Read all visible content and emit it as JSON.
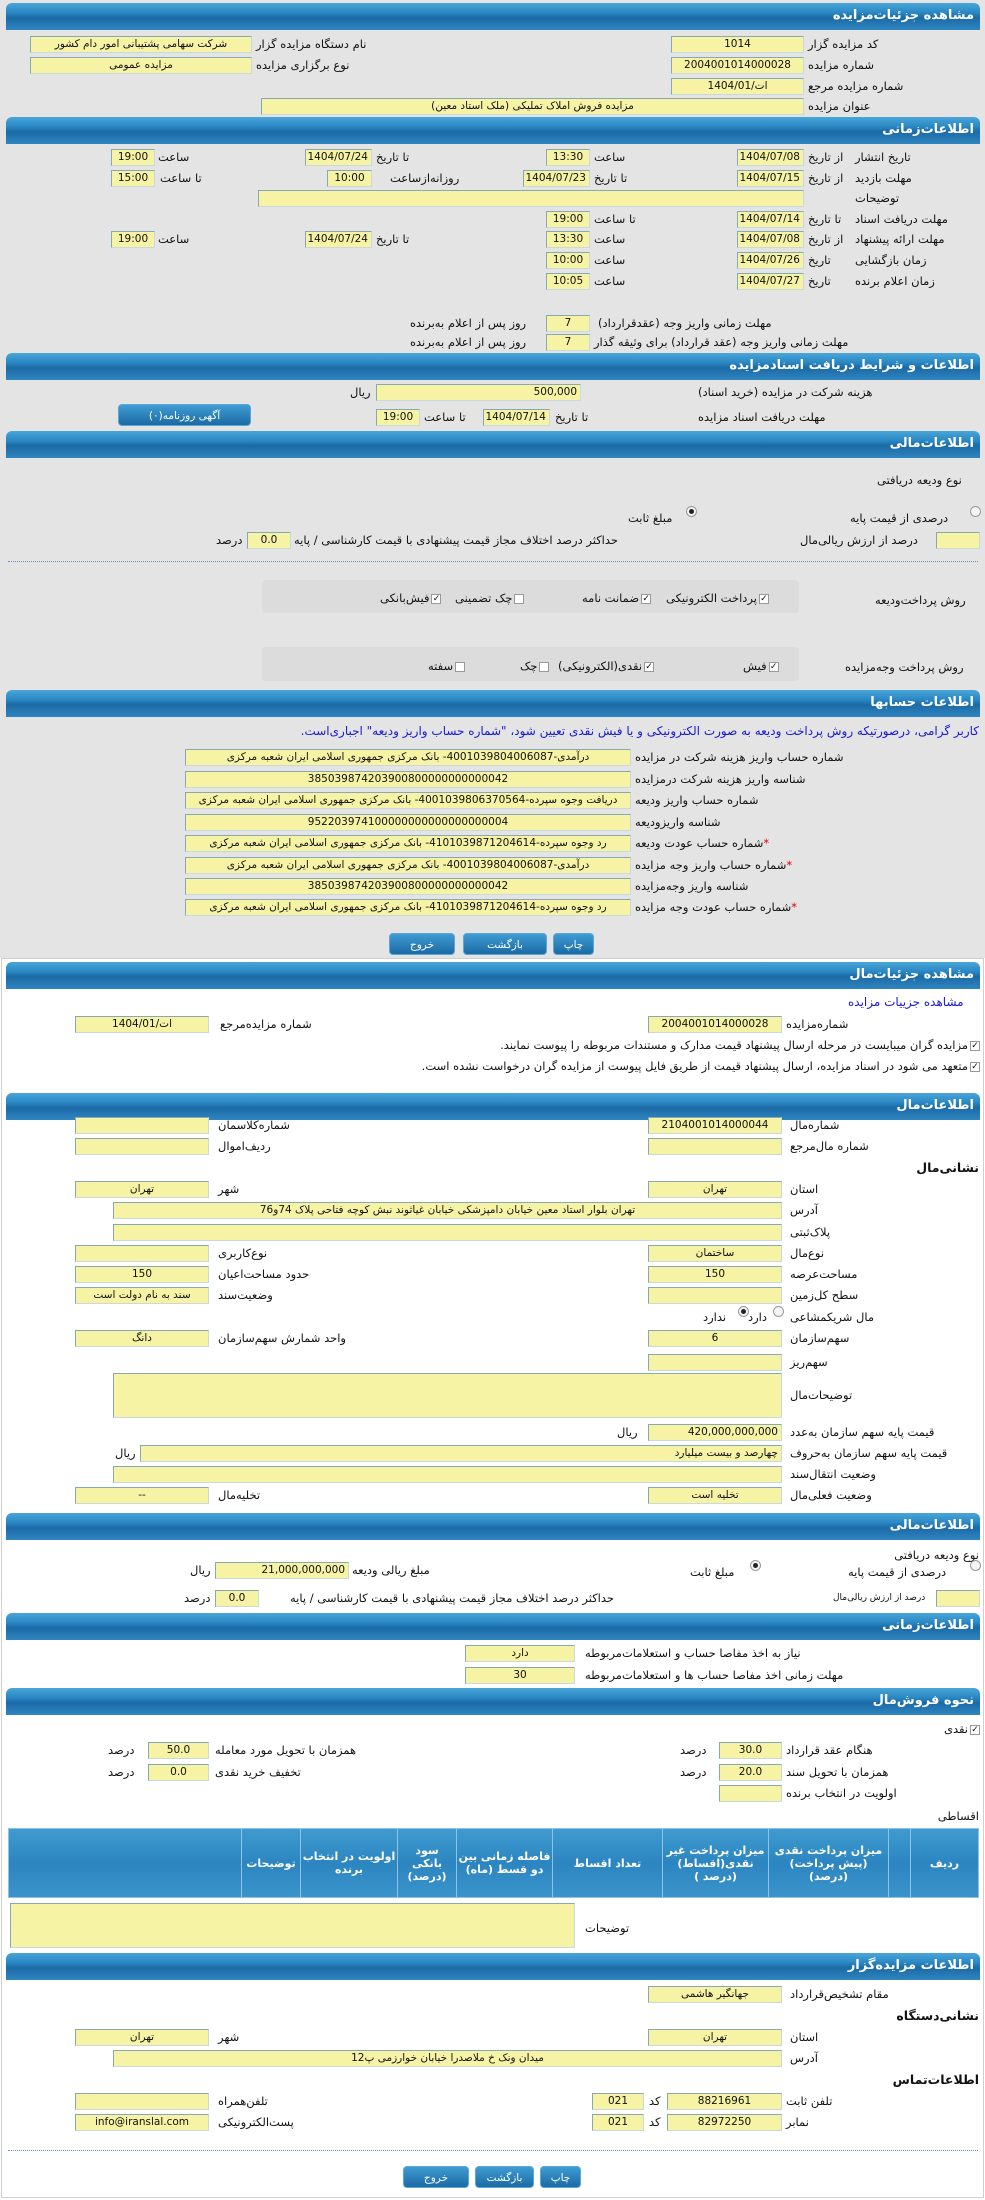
{
  "colors": {
    "header": "#2a88c4",
    "field": "#f6f3a4",
    "page": "#e4e4e4",
    "note": "#1a1ad0"
  },
  "s1": {
    "title": "مشاهده جزئیات‌مزایده",
    "code_label": "کد مزایده گزار",
    "code": "1014",
    "org_label": "نام دستگاه مزایده گزار",
    "org": "شرکت سهامی پشتیبانی امور دام کشور",
    "num_label": "شماره مزایده",
    "num": "2004001014000028",
    "type_label": "نوع برگزاری مزایده",
    "type": "مزایده عمومی",
    "ref_label": "شماره مزایده مرجع",
    "ref": "ات/1404/01",
    "subject_label": "عنوان مزایده",
    "subject": "مزایده فروش املاک تملیکی (ملک استاد معین)"
  },
  "s2": {
    "title": "اطلاعات‌زمانی",
    "from_date": "از تاریخ",
    "to_date": "تا تاریخ",
    "date": "تاریخ",
    "hour": "ساعت",
    "to_hour": "تا ساعت",
    "daily_from": "روزانه‌ازساعت",
    "publish_label": "تاریخ انتشار",
    "publish_from": "1404/07/08",
    "publish_from_time": "13:30",
    "publish_to": "1404/07/24",
    "publish_to_time": "19:00",
    "visit_label": "مهلت بازدید",
    "visit_from": "1404/07/15",
    "visit_to": "1404/07/23",
    "visit_daily_from": "10:00",
    "visit_to_time": "15:00",
    "desc_label": "توضیحات",
    "desc": "",
    "docs_label": "مهلت دریافت اسناد",
    "docs_to": "1404/07/14",
    "docs_to_time": "19:00",
    "offer_label": "مهلت ارائه پیشنهاد",
    "offer_from": "1404/07/08",
    "offer_from_time": "13:30",
    "offer_to": "1404/07/24",
    "offer_to_time": "19:00",
    "open_label": "زمان بازگشایی",
    "open_date": "1404/07/26",
    "open_time": "10:00",
    "winner_label": "زمان اعلام برنده",
    "winner_date": "1404/07/27",
    "winner_time": "10:05",
    "pay1_label": "مهلت زمانی واریز وجه (عقدقرارداد)",
    "pay1": "7",
    "pay2_label": "مهلت زمانی واریز وجه (عقد قرارداد) برای وثیقه گذار",
    "pay2": "7",
    "days_suffix": "روز پس از اعلام به‌برنده"
  },
  "s3": {
    "title": "اطلاعات و شرایط دریافت اسنادمزایده",
    "fee_label": "هزینه شرکت در مزایده (خرید اسناد)",
    "fee": "500,000",
    "rial": "ریال",
    "deadline_label": "مهلت دریافت اسناد مزایده",
    "to_date": "تا تاریخ",
    "deadline_date": "1404/07/14",
    "to_hour": "تا ساعت",
    "deadline_time": "19:00",
    "ad_button": "آگهی روزنامه(٠)"
  },
  "s4": {
    "title": "اطلاعات‌مالی",
    "deposit_type_label": "نوع ودیعه دریافتی",
    "opt_percent": "درصدی از قیمت پایه",
    "opt_fixed": "مبلغ ثابت",
    "selected": "fixed",
    "percent_of_value_label": "درصد از ارزش ریالی‌مال",
    "percent_of_value": "",
    "max_diff_label": "حداکثر درصد اختلاف مجاز قیمت پیشنهادی با قیمت کارشناسی / پایه",
    "max_diff": "0.0",
    "percent": "درصد",
    "deposit_methods_label": "روش پرداخت‌ودیعه",
    "deposit_methods": [
      {
        "label": "پرداخت الکترونیکی",
        "checked": true
      },
      {
        "label": "ضمانت نامه",
        "checked": true
      },
      {
        "label": "چک تضمینی",
        "checked": false
      },
      {
        "label": "فیش‌بانکی",
        "checked": true
      }
    ],
    "payment_methods_label": "روش پرداخت وجه‌مزایده",
    "payment_methods": [
      {
        "label": "فیش",
        "checked": true
      },
      {
        "label": "نقدی(الکترونیکی)",
        "checked": true
      },
      {
        "label": "چک",
        "checked": false
      },
      {
        "label": "سفته",
        "checked": false
      }
    ]
  },
  "s5": {
    "title": "اطلاعات حسابها",
    "note": "کاربر گرامی، درصورتیکه روش پرداخت ودیعه به صورت الکترونیکی و یا فیش نقدی تعیین شود، \"شماره حساب واریز ودیعه\" اجباری‌است.",
    "rows": [
      {
        "label": "شماره حساب واریز هزینه شرکت در مزایده",
        "value": "درآمدی-4001039804006087- بانک مرکزی جمهوری اسلامی ایران شعبه مرکزی",
        "required": ""
      },
      {
        "label": "شناسه واریز هزینه شرکت درمزایده",
        "value": "385039874203900800000000000042",
        "required": ""
      },
      {
        "label": "شماره حساب واریز ودیعه",
        "value": "دریافت وجوه سپرده-4001039806370564- بانک مرکزی جمهوری اسلامی ایران شعبه مرکزی",
        "required": ""
      },
      {
        "label": "شناسه واریزودیعه",
        "value": "952203974100000000000000000004",
        "required": ""
      },
      {
        "label": "شماره حساب عودت ودیعه",
        "value": "رد وجوه سپرده-4101039871204614- بانک مرکزی جمهوری اسلامی ایران شعبه مرکزی",
        "required": "*"
      },
      {
        "label": "شماره حساب واریز وجه مزایده",
        "value": "درآمدی-4001039804006087- بانک مرکزی جمهوری اسلامی ایران شعبه مرکزی",
        "required": "*"
      },
      {
        "label": "شناسه واریز وجه‌مزایده",
        "value": "385039874203900800000000000042",
        "required": ""
      },
      {
        "label": "شماره حساب عودت وجه مزایده",
        "value": "رد وجوه سپرده-4101039871204614- بانک مرکزی جمهوری اسلامی ایران شعبه مرکزی",
        "required": "*"
      }
    ],
    "print": "چاپ",
    "back": "بازگشت",
    "exit": "خروج"
  },
  "s6": {
    "title": "مشاهده جزئیات‌مال",
    "link": "مشاهده جزییات مزایده",
    "num_label": "شماره‌مزایده",
    "num": "2004001014000028",
    "ref_label": "شماره مزایده‌مرجع",
    "ref": "ات/1404/01",
    "check1": "مزایده گران میبایست در مرحله ارسال پیشنهاد قیمت مدارک و مستندات مربوطه را پیوست نمایند.",
    "check2": "متعهد می شود در اسناد مزایده، ارسال پیشنهاد قیمت از طریق فایل پیوست از مزایده گران درخواست نشده است."
  },
  "s7": {
    "title": "اطلاعات‌مال",
    "asset_no_label": "شماره‌مال",
    "asset_no": "2104001014000044",
    "class_no_label": "شماره‌کلاسمان",
    "class_no": "",
    "asset_ref_label": "شماره مال‌مرجع",
    "asset_ref": "",
    "row_label": "ردیف‌اموال",
    "row": "",
    "address_heading": "نشانی‌مال",
    "province_label": "استان",
    "province": "تهران",
    "city_label": "شهر",
    "city": "تهران",
    "address_label": "آدرس",
    "address": "تهران بلوار استاد معین خیابان دامپزشکی خیابان غیاثوند نبش کوچه فتاحی پلاک 74و76",
    "plate_label": "پلاک‌ثبتی",
    "plate": "",
    "asset_type_label": "نوع‌مال",
    "asset_type": "ساختمان",
    "usage_label": "نوع‌کاربری",
    "usage": "",
    "land_area_label": "مساحت‌عرصه",
    "land_area": "150",
    "building_area_label": "حدود مساحت‌اعیان",
    "building_area": "150",
    "total_area_label": "سطح کل‌زمین",
    "total_area": "",
    "deed_label": "وضعیت‌سند",
    "deed": "سند به نام دولت است",
    "shared_label": "مال شریکمشاعی",
    "shared_yes": "دارد",
    "shared_no": "ندارد",
    "shared": "no",
    "share_label": "سهم‌سازمان",
    "share": "6",
    "share_unit_label": "واحد شمارش سهم‌سازمان",
    "share_unit": "دانگ",
    "share_detail_label": "سهم‌ریز",
    "share_detail": "",
    "desc_label": "توضیحات‌مال",
    "desc": "",
    "price_num_label": "قیمت پایه سهم سازمان به‌عدد",
    "price_num": "420,000,000,000",
    "price_words_label": "قیمت پایه سهم سازمان به‌حروف",
    "price_words": "چهارصد و بیست میلیارد",
    "rial": "ریال",
    "transfer_label": "وضعیت انتقال‌سند",
    "transfer": "",
    "status_label": "وضعیت فعلی‌مال",
    "status": "تخلیه است",
    "evac_label": "تخلیه‌مال",
    "evac": "--"
  },
  "s8": {
    "title": "اطلاعات‌مالی",
    "deposit_type_label": "نوع ودیعه دریافتی",
    "opt_percent": "درصدی از قیمت پایه",
    "opt_fixed": "مبلغ ثابت",
    "selected": "fixed",
    "amount_label": "مبلغ ریالی ودیعه",
    "amount": "21,000,000,000",
    "rial": "ریال",
    "percent_of_value_label": "درصد از ارزش ریالی‌مال",
    "percent_of_value": "",
    "max_diff_label": "حداکثر درصد اختلاف مجاز قیمت پیشنهادی با قیمت کارشناسی / پایه",
    "max_diff": "0.0",
    "percent": "درصد"
  },
  "s9": {
    "title": "اطلاعات‌زمانی",
    "clearance_label": "نیاز به اخذ مفاصا حساب و استعلامات‌مربوطه",
    "clearance": "دارد",
    "clearance_days_label": "مهلت زمانی اخذ مفاصا حساب ها و استعلامات‌مربوطه",
    "clearance_days": "30"
  },
  "s10": {
    "title": "نحوه فروش‌مال",
    "cash_label": "نقدی",
    "cash": true,
    "percent": "درصد",
    "contract_label": "هنگام عقد قرارداد",
    "contract": "30.0",
    "delivery_label": "همزمان با تحویل مورد معامله",
    "delivery": "50.0",
    "deed_label": "همزمان با تحویل سند",
    "deed": "20.0",
    "discount_label": "تخفیف خرید نقدی",
    "discount": "0.0",
    "priority_label": "اولویت در انتخاب برنده",
    "priority": "",
    "installment_label": "اقساطی",
    "columns": [
      "ردیف",
      "",
      "میزان پرداخت نقدی (پیش پرداخت)(درصد)",
      "میزان پرداخت غیر نقدی(اقساط)(درصد )",
      "تعداد اقساط",
      "فاصله زمانی بین دو قسط (ماه)",
      "سود بانکی (درصد)",
      "اولویت در انتخاب برنده",
      "توضیحات",
      ""
    ],
    "desc_label": "توضیحات",
    "desc": ""
  },
  "s11": {
    "title": "اطلاعات مزایده‌گزار",
    "authority_label": "مقام تشخیص‌قرارداد",
    "authority": "جهانگیر هاشمی",
    "address_heading": "نشانی‌دستگاه",
    "province_label": "استان",
    "province": "تهران",
    "city_label": "شهر",
    "city": "تهران",
    "address_label": "آدرس",
    "address": "میدان ونک خ ملاصدرا خیابان خوارزمی پ12",
    "contact_heading": "اطلاعات‌تماس",
    "phone_label": "تلفن ثابت",
    "phone": "88216961",
    "code_label": "کد",
    "phone_code": "021",
    "mobile_label": "تلفن‌همراه",
    "mobile": "",
    "fax_label": "نمابر",
    "fax": "82972250",
    "fax_code": "021",
    "email_label": "پست‌الکترونیکی",
    "email": "info@iranslal.com",
    "print": "چاپ",
    "back": "بازگشت",
    "exit": "خروج"
  }
}
